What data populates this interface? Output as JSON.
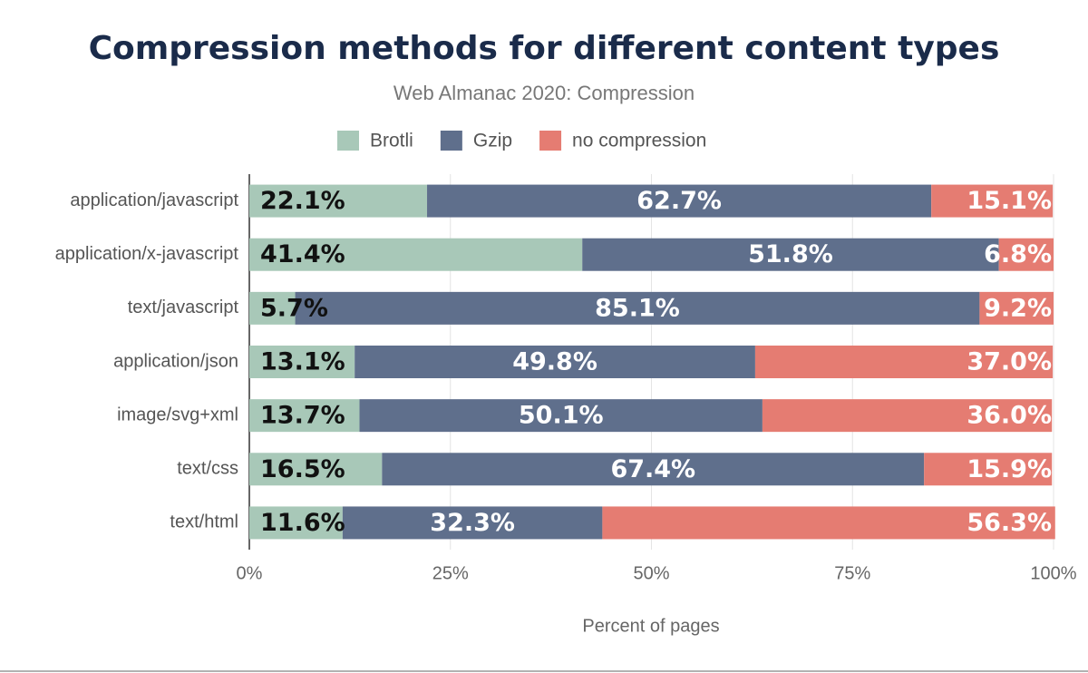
{
  "chart_data": {
    "type": "stacked-bar-horizontal",
    "title": "Compression methods for different content types",
    "subtitle": "Web Almanac 2020: Compression",
    "x_axis_label": "Percent of pages",
    "categories": [
      "application/javascript",
      "application/x-javascript",
      "text/javascript",
      "application/json",
      "image/svg+xml",
      "text/css",
      "text/html"
    ],
    "series": [
      {
        "name": "Brotli",
        "color": "#a8c8b8",
        "values": [
          22.1,
          41.4,
          5.7,
          13.1,
          13.7,
          16.5,
          11.6
        ],
        "value_labels": [
          "22.1%",
          "41.4%",
          "5.7%",
          "13.1%",
          "13.7%",
          "16.5%",
          "11.6%"
        ]
      },
      {
        "name": "Gzip",
        "color": "#5f6f8c",
        "values": [
          62.7,
          51.8,
          85.1,
          49.8,
          50.1,
          67.4,
          32.3
        ],
        "value_labels": [
          "62.7%",
          "51.8%",
          "85.1%",
          "49.8%",
          "50.1%",
          "67.4%",
          "32.3%"
        ]
      },
      {
        "name": "no compression",
        "color": "#e57c72",
        "values": [
          15.1,
          6.8,
          9.2,
          37.0,
          36.0,
          15.9,
          56.3
        ],
        "value_labels": [
          "15.1%",
          "6.8%",
          "9.2%",
          "37.0%",
          "36.0%",
          "15.9%",
          "56.3%"
        ]
      }
    ],
    "xlim": [
      0,
      100
    ],
    "xticks": [
      {
        "value": 0,
        "label": "0%"
      },
      {
        "value": 25,
        "label": "25%"
      },
      {
        "value": 50,
        "label": "50%"
      },
      {
        "value": 75,
        "label": "75%"
      },
      {
        "value": 100,
        "label": "100%"
      }
    ],
    "grid": true,
    "legend": "top"
  }
}
